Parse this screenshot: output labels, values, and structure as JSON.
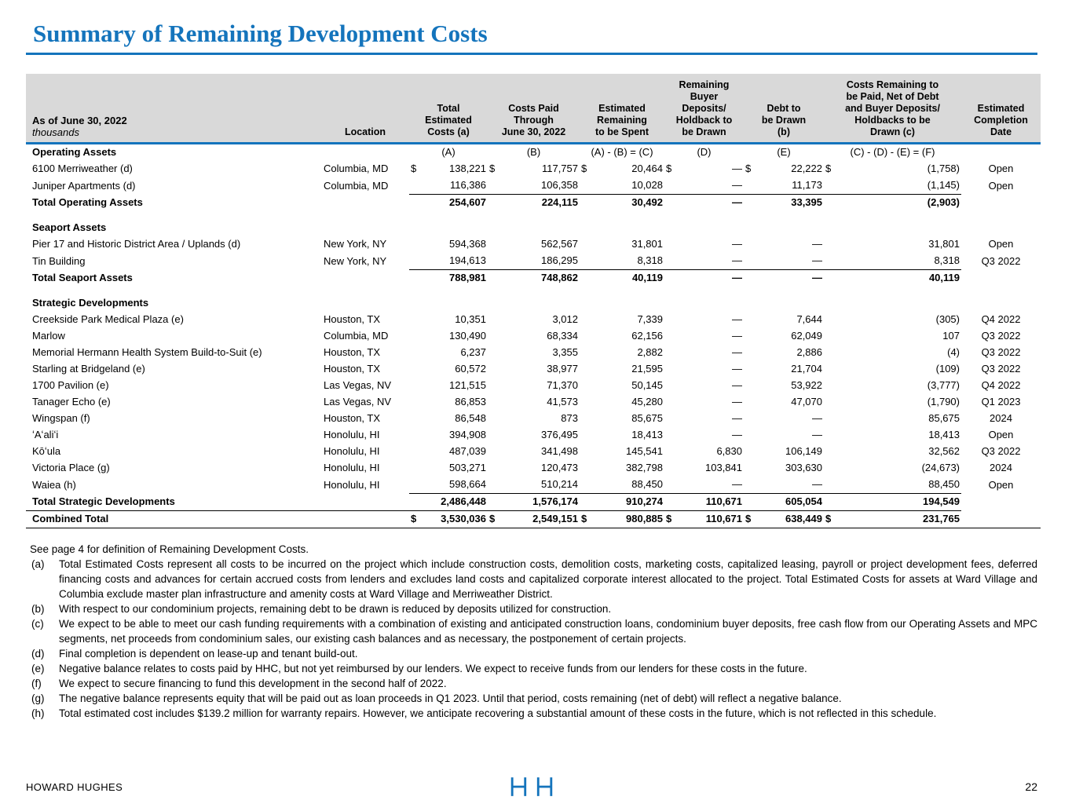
{
  "page": {
    "title": "Summary of Remaining Development Costs",
    "footer_brand": "HOWARD HUGHES",
    "page_number": "22",
    "accent_color": "#1474BC",
    "header_band_color": "#D9D9D9"
  },
  "table": {
    "as_of_label": "As of June 30, 2022",
    "units_label": "thousands",
    "currency_symbol": "$",
    "columns": [
      {
        "id": "asset-name",
        "label": ""
      },
      {
        "id": "location",
        "label": "Location"
      },
      {
        "id": "total-estimated-costs",
        "label": "Total\nEstimated\nCosts (a)"
      },
      {
        "id": "costs-paid-through",
        "label": "Costs Paid\nThrough\nJune 30, 2022"
      },
      {
        "id": "estimated-remaining",
        "label": "Estimated\nRemaining\nto be Spent"
      },
      {
        "id": "remaining-buyer-deposits",
        "label": "Remaining\nBuyer\nDeposits/\nHoldback to\nbe Drawn"
      },
      {
        "id": "debt-to-be-drawn",
        "label": "Debt to\nbe Drawn\n(b)"
      },
      {
        "id": "costs-remaining-net",
        "label": "Costs Remaining to\nbe Paid, Net of Debt\nand Buyer Deposits/\nHoldbacks to be\nDrawn (c)"
      },
      {
        "id": "estimated-completion-date",
        "label": "Estimated\nCompletion\nDate"
      }
    ],
    "rows": [
      {
        "type": "section-letters",
        "name": "Operating Assets",
        "letters": [
          "(A)",
          "(B)",
          "(A) - (B) = (C)",
          "(D)",
          "(E)",
          "(C) - (D) - (E) = (F)"
        ]
      },
      {
        "type": "data",
        "dollar": true,
        "name": "6100 Merriweather (d)",
        "location": "Columbia, MD",
        "values": [
          "138,221",
          "117,757",
          "20,464",
          "—",
          "22,222",
          "(1,758)"
        ],
        "completion": "Open"
      },
      {
        "type": "data",
        "name": "Juniper Apartments (d)",
        "location": "Columbia, MD",
        "values": [
          "116,386",
          "106,358",
          "10,028",
          "—",
          "11,173",
          "(1,145)"
        ],
        "completion": "Open"
      },
      {
        "type": "total",
        "name": "Total Operating Assets",
        "values": [
          "254,607",
          "224,115",
          "30,492",
          "—",
          "33,395",
          "(2,903)"
        ],
        "completion": ""
      },
      {
        "type": "spacer"
      },
      {
        "type": "section",
        "name": "Seaport Assets"
      },
      {
        "type": "data",
        "name": "Pier 17 and Historic District Area / Uplands (d)",
        "location": "New York, NY",
        "values": [
          "594,368",
          "562,567",
          "31,801",
          "—",
          "—",
          "31,801"
        ],
        "completion": "Open"
      },
      {
        "type": "data",
        "name": "Tin Building",
        "location": "New York, NY",
        "values": [
          "194,613",
          "186,295",
          "8,318",
          "—",
          "—",
          "8,318"
        ],
        "completion": "Q3 2022"
      },
      {
        "type": "total",
        "name": "Total Seaport Assets",
        "values": [
          "788,981",
          "748,862",
          "40,119",
          "—",
          "—",
          "40,119"
        ],
        "completion": ""
      },
      {
        "type": "spacer"
      },
      {
        "type": "section",
        "name": "Strategic Developments"
      },
      {
        "type": "data",
        "name": "Creekside Park Medical Plaza (e)",
        "location": "Houston, TX",
        "values": [
          "10,351",
          "3,012",
          "7,339",
          "—",
          "7,644",
          "(305)"
        ],
        "completion": "Q4 2022"
      },
      {
        "type": "data",
        "name": "Marlow",
        "location": "Columbia, MD",
        "values": [
          "130,490",
          "68,334",
          "62,156",
          "—",
          "62,049",
          "107"
        ],
        "completion": "Q3 2022"
      },
      {
        "type": "data",
        "name": "Memorial Hermann Health System Build-to-Suit (e)",
        "location": "Houston, TX",
        "values": [
          "6,237",
          "3,355",
          "2,882",
          "—",
          "2,886",
          "(4)"
        ],
        "completion": "Q3 2022"
      },
      {
        "type": "data",
        "name": "Starling at Bridgeland (e)",
        "location": "Houston, TX",
        "values": [
          "60,572",
          "38,977",
          "21,595",
          "—",
          "21,704",
          "(109)"
        ],
        "completion": "Q3 2022"
      },
      {
        "type": "data",
        "name": "1700 Pavilion (e)",
        "location": "Las Vegas, NV",
        "values": [
          "121,515",
          "71,370",
          "50,145",
          "—",
          "53,922",
          "(3,777)"
        ],
        "completion": "Q4 2022"
      },
      {
        "type": "data",
        "name": "Tanager Echo (e)",
        "location": "Las Vegas, NV",
        "values": [
          "86,853",
          "41,573",
          "45,280",
          "—",
          "47,070",
          "(1,790)"
        ],
        "completion": "Q1 2023"
      },
      {
        "type": "data",
        "name": "Wingspan (f)",
        "location": "Houston, TX",
        "values": [
          "86,548",
          "873",
          "85,675",
          "—",
          "—",
          "85,675"
        ],
        "completion": "2024"
      },
      {
        "type": "data",
        "name": "ʻAʻaliʻi",
        "location": "Honolulu, HI",
        "values": [
          "394,908",
          "376,495",
          "18,413",
          "—",
          "—",
          "18,413"
        ],
        "completion": "Open"
      },
      {
        "type": "data",
        "name": "Kōʻula",
        "location": "Honolulu, HI",
        "values": [
          "487,039",
          "341,498",
          "145,541",
          "6,830",
          "106,149",
          "32,562"
        ],
        "completion": "Q3 2022"
      },
      {
        "type": "data",
        "name": "Victoria Place (g)",
        "location": "Honolulu, HI",
        "values": [
          "503,271",
          "120,473",
          "382,798",
          "103,841",
          "303,630",
          "(24,673)"
        ],
        "completion": "2024"
      },
      {
        "type": "data",
        "name": "Waiea (h)",
        "location": "Honolulu, HI",
        "values": [
          "598,664",
          "510,214",
          "88,450",
          "—",
          "—",
          "88,450"
        ],
        "completion": "Open"
      },
      {
        "type": "total",
        "name": "Total Strategic Developments",
        "values": [
          "2,486,448",
          "1,576,174",
          "910,274",
          "110,671",
          "605,054",
          "194,549"
        ],
        "completion": ""
      },
      {
        "type": "combined",
        "dollar": true,
        "name": "Combined Total",
        "values": [
          "3,530,036",
          "2,549,151",
          "980,885",
          "110,671",
          "638,449",
          "231,765"
        ],
        "completion": ""
      }
    ]
  },
  "footnotes": [
    {
      "marker": "",
      "text": "See page 4 for definition of Remaining Development Costs."
    },
    {
      "marker": "(a)",
      "text": "Total Estimated Costs represent all costs to be incurred on the project which include construction costs, demolition costs, marketing costs, capitalized leasing, payroll or project development fees, deferred financing costs and advances for certain accrued costs from lenders and excludes land costs and capitalized corporate interest allocated to the project. Total Estimated Costs for assets at Ward Village and Columbia exclude master plan infrastructure and amenity costs at Ward Village and Merriweather District."
    },
    {
      "marker": "(b)",
      "text": "With respect to our condominium projects, remaining debt to be drawn is reduced by deposits utilized for construction."
    },
    {
      "marker": "(c)",
      "text": "We expect to be able to meet our cash funding requirements with a combination of existing and anticipated construction loans, condominium buyer deposits, free cash flow from our Operating Assets and MPC segments, net proceeds from condominium sales, our existing cash balances and as necessary, the postponement of certain projects."
    },
    {
      "marker": "(d)",
      "text": "Final completion is dependent on lease-up and tenant build-out."
    },
    {
      "marker": "(e)",
      "text": "Negative balance relates to costs paid by HHC, but not yet reimbursed by our lenders. We expect to receive funds from our lenders for these costs in the future."
    },
    {
      "marker": "(f)",
      "text": "We expect to secure financing to fund this development in the second half of 2022."
    },
    {
      "marker": "(g)",
      "text": "The negative balance represents equity that will be paid out as loan proceeds in Q1 2023.  Until that period, costs remaining (net of debt) will reflect a negative balance."
    },
    {
      "marker": "(h)",
      "text": "Total estimated cost includes $139.2 million for warranty repairs. However, we anticipate recovering a substantial amount of these costs in the future, which is not reflected in this schedule."
    }
  ]
}
